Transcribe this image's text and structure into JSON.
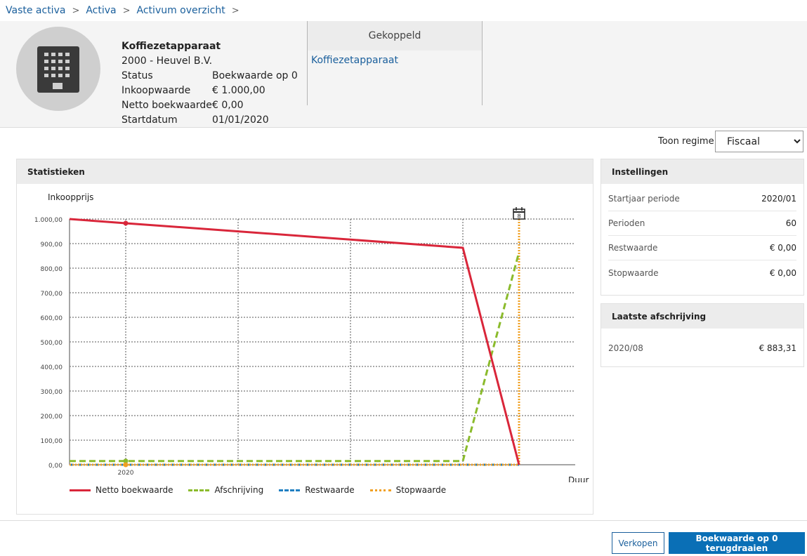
{
  "breadcrumb": [
    "Vaste activa",
    "Activa",
    "Activum overzicht"
  ],
  "asset": {
    "title": "Koffiezetapparaat",
    "company": "2000 - Heuvel B.V.",
    "fields": [
      {
        "label": "Status",
        "value": "Boekwaarde op 0"
      },
      {
        "label": "Inkoopwaarde",
        "value": "€ 1.000,00"
      },
      {
        "label": "Netto boekwaarde",
        "value": "€ 0,00"
      },
      {
        "label": "Startdatum",
        "value": "01/01/2020"
      }
    ]
  },
  "linked": {
    "header": "Gekoppeld",
    "value": "Koffiezetapparaat"
  },
  "regime": {
    "label": "Toon regime",
    "selected": "Fiscaal"
  },
  "stats": {
    "title": "Statistieken"
  },
  "settings": {
    "title": "Instellingen",
    "rows": [
      {
        "label": "Startjaar periode",
        "value": "2020/01"
      },
      {
        "label": "Perioden",
        "value": "60"
      },
      {
        "label": "Restwaarde",
        "value": "€ 0,00"
      },
      {
        "label": "Stopwaarde",
        "value": "€ 0,00"
      }
    ]
  },
  "latest": {
    "title": "Laatste afschrijving",
    "rows": [
      {
        "label": "2020/08",
        "value": "€ 883,31"
      }
    ]
  },
  "buttons": {
    "sell": "Verkopen",
    "revert": "Boekwaarde op 0 terugdraaien"
  },
  "chart_data": {
    "type": "line",
    "ylabel": "Inkoopprijs",
    "xlabel": "Duur",
    "ylim": [
      0,
      1000
    ],
    "yticks": [
      "0,00",
      "100,00",
      "200,00",
      "300,00",
      "400,00",
      "500,00",
      "600,00",
      "700,00",
      "800,00",
      "900,00",
      "1.000,00"
    ],
    "x_label_at_1": "2020",
    "x_max": 9,
    "event_marker": {
      "x": 8,
      "label": "8"
    },
    "grid": true,
    "legend_position": "bottom",
    "series": [
      {
        "name": "Netto boekwaarde",
        "color": "#d9263a",
        "dash": "solid",
        "points": [
          [
            0,
            1000
          ],
          [
            1,
            983
          ],
          [
            7,
            883
          ],
          [
            8,
            0
          ]
        ]
      },
      {
        "name": "Afschrijving",
        "color": "#8bbb2c",
        "dash": "dashed",
        "points": [
          [
            0,
            15
          ],
          [
            7,
            15
          ],
          [
            8,
            865
          ]
        ]
      },
      {
        "name": "Restwaarde",
        "color": "#1f7fc2",
        "dash": "dashdot",
        "points": [
          [
            0,
            0
          ],
          [
            8,
            0
          ]
        ]
      },
      {
        "name": "Stopwaarde",
        "color": "#f0a023",
        "dash": "dotted",
        "points": [
          [
            0,
            0
          ],
          [
            8,
            0
          ],
          [
            8,
            1000
          ]
        ]
      }
    ]
  }
}
